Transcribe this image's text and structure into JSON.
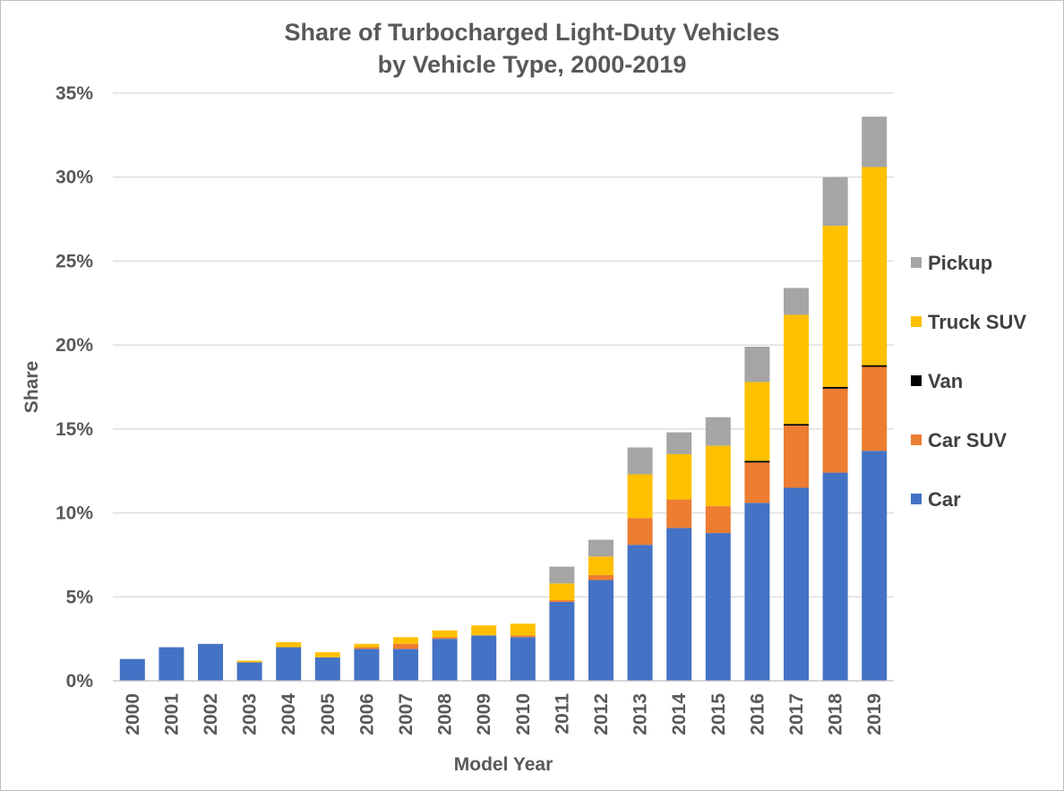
{
  "chart_data": {
    "type": "bar",
    "stacked": true,
    "title": [
      "Share of Turbocharged Light-Duty Vehicles",
      "by Vehicle Type, 2000-2019"
    ],
    "xlabel": "Model Year",
    "ylabel": "Share",
    "ylim": [
      0,
      35
    ],
    "yticks": [
      0,
      5,
      10,
      15,
      20,
      25,
      30,
      35
    ],
    "ytick_labels": [
      "0%",
      "5%",
      "10%",
      "15%",
      "20%",
      "25%",
      "30%",
      "35%"
    ],
    "grid": true,
    "legend_position": "right",
    "categories": [
      "2000",
      "2001",
      "2002",
      "2003",
      "2004",
      "2005",
      "2006",
      "2007",
      "2008",
      "2009",
      "2010",
      "2011",
      "2012",
      "2013",
      "2014",
      "2015",
      "2016",
      "2017",
      "2018",
      "2019"
    ],
    "series": [
      {
        "name": "Car",
        "color": "#4472C4",
        "values": [
          1.3,
          2.0,
          2.2,
          1.1,
          2.0,
          1.4,
          1.9,
          1.9,
          2.5,
          2.7,
          2.6,
          4.7,
          6.0,
          8.1,
          9.1,
          8.8,
          10.6,
          11.5,
          12.4,
          13.7
        ]
      },
      {
        "name": "Car SUV",
        "color": "#ED7D31",
        "values": [
          0.0,
          0.0,
          0.0,
          0.0,
          0.0,
          0.0,
          0.1,
          0.3,
          0.1,
          0.0,
          0.1,
          0.1,
          0.3,
          1.6,
          1.7,
          1.6,
          2.4,
          3.7,
          5.0,
          5.0
        ]
      },
      {
        "name": "Van",
        "color": "#000000",
        "values": [
          0.0,
          0.0,
          0.0,
          0.0,
          0.0,
          0.0,
          0.0,
          0.0,
          0.0,
          0.0,
          0.0,
          0.0,
          0.0,
          0.0,
          0.0,
          0.0,
          0.1,
          0.1,
          0.1,
          0.1
        ]
      },
      {
        "name": "Truck SUV",
        "color": "#FFC000",
        "values": [
          0.0,
          0.0,
          0.0,
          0.1,
          0.3,
          0.3,
          0.2,
          0.4,
          0.4,
          0.6,
          0.7,
          1.0,
          1.1,
          2.6,
          2.7,
          3.6,
          4.7,
          6.5,
          9.6,
          11.8
        ]
      },
      {
        "name": "Pickup",
        "color": "#A5A5A5",
        "values": [
          0.0,
          0.0,
          0.0,
          0.0,
          0.0,
          0.0,
          0.0,
          0.0,
          0.0,
          0.0,
          0.0,
          1.0,
          1.0,
          1.6,
          1.3,
          1.7,
          2.1,
          1.6,
          2.9,
          3.0
        ]
      }
    ],
    "legend_order": [
      "Pickup",
      "Truck SUV",
      "Van",
      "Car SUV",
      "Car"
    ]
  }
}
